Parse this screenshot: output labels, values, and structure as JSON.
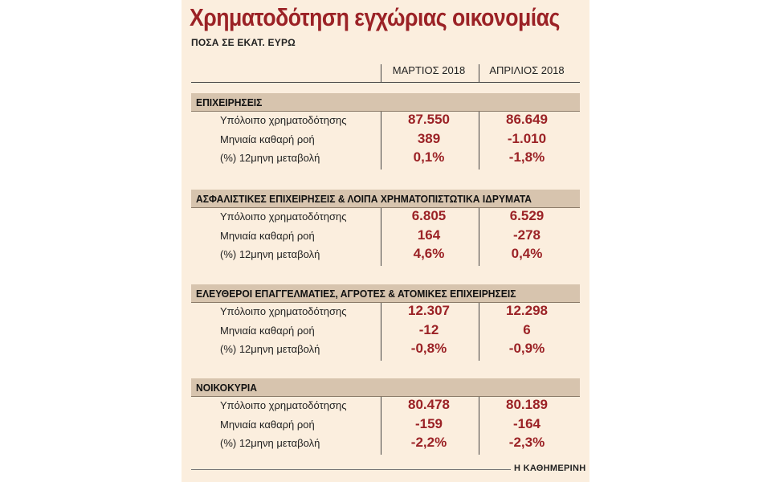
{
  "title": "Χρηματοδότηση εγχώριας οικονομίας",
  "subtitle": "ΠΟΣΑ ΣΕ ΕΚΑΤ. ΕΥΡΩ",
  "source": "Η ΚΑΘΗΜΕΡΙΝΗ",
  "colors": {
    "accent": "#9b2226",
    "panel": "#fbeede",
    "section_band": "#d7c4ae"
  },
  "chart_data": {
    "type": "table",
    "columns": [
      "ΜΑΡΤΙΟΣ 2018",
      "ΑΠΡΙΛΙΟΣ 2018"
    ],
    "row_labels": [
      "Υπόλοιπο χρηματοδότησης",
      "Μηνιαία καθαρή ροή",
      "(%) 12μηνη μεταβολή"
    ],
    "sections": [
      {
        "name": "ΕΠΙΧΕΙΡΗΣΕΙΣ",
        "rows": [
          [
            "87.550",
            "86.649"
          ],
          [
            "389",
            "-1.010"
          ],
          [
            "0,1%",
            "-1,8%"
          ]
        ]
      },
      {
        "name": "ΑΣΦΑΛΙΣΤΙΚΕΣ ΕΠΙΧΕΙΡΗΣΕΙΣ & ΛΟΙΠΑ ΧΡΗΜΑΤΟΠΙΣΤΩΤΙΚΑ ΙΔΡΥΜΑΤΑ",
        "rows": [
          [
            "6.805",
            "6.529"
          ],
          [
            "164",
            "-278"
          ],
          [
            "4,6%",
            "0,4%"
          ]
        ]
      },
      {
        "name": "ΕΛΕΥΘΕΡΟΙ ΕΠΑΓΓΕΛΜΑΤΙΕΣ, ΑΓΡΟΤΕΣ & ΑΤΟΜΙΚΕΣ ΕΠΙΧΕΙΡΗΣΕΙΣ",
        "rows": [
          [
            "12.307",
            "12.298"
          ],
          [
            "-12",
            "6"
          ],
          [
            "-0,8%",
            "-0,9%"
          ]
        ]
      },
      {
        "name": "ΝΟΙΚΟΚΥΡΙΑ",
        "rows": [
          [
            "80.478",
            "80.189"
          ],
          [
            "-159",
            "-164"
          ],
          [
            "-2,2%",
            "-2,3%"
          ]
        ]
      }
    ]
  }
}
